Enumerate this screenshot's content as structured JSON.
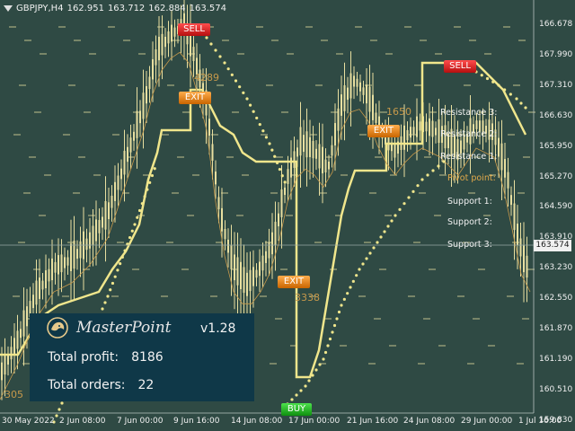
{
  "header": {
    "symbol": "GBPJPY,H4",
    "open": "162.951",
    "high": "163.712",
    "low": "162.884",
    "close": "163.574"
  },
  "price_axis": [
    "166.678",
    "167.990",
    "167.310",
    "166.630",
    "165.950",
    "165.270",
    "164.590",
    "163.910",
    "163.230",
    "162.550",
    "161.870",
    "161.190",
    "160.510",
    "159.830"
  ],
  "current_price": "163.574",
  "time_axis": [
    "30 May 2022",
    "2 Jun 08:00",
    "7 Jun 00:00",
    "9 Jun 16:00",
    "14 Jun 08:00",
    "17 Jun 00:00",
    "21 Jun 16:00",
    "24 Jun 08:00",
    "29 Jun 00:00",
    "1 Jul 16:00"
  ],
  "signals": {
    "sell1": "SELL",
    "sell2": "SELL",
    "exit1": "EXIT",
    "exit2": "EXIT",
    "exit3": "EXIT",
    "buy": "BUY"
  },
  "trade_results": {
    "r1": "4289",
    "r2": "1650",
    "r3": "3338",
    "r4": "305"
  },
  "pivots": {
    "resistance3": "Resistance 3:",
    "resistance2": "Resistance 2:",
    "resistance1": "Resistance 1:",
    "pivot": "Pivot point:",
    "support1": "Support 1:",
    "support2": "Support 2:",
    "support3": "Support 3:"
  },
  "panel": {
    "brand": "MasterPoint",
    "version": "v1.28",
    "profit_label": "Total profit:",
    "profit_value": "8186",
    "orders_label": "Total orders:",
    "orders_value": "22"
  },
  "colors": {
    "background": "#2f4a44",
    "candles": "#e8dfa0",
    "trend_line": "#f0e68c",
    "panel": "#0f3848"
  },
  "icons": [
    "header-dropdown-icon",
    "masterpoint-lion-logo-icon"
  ]
}
